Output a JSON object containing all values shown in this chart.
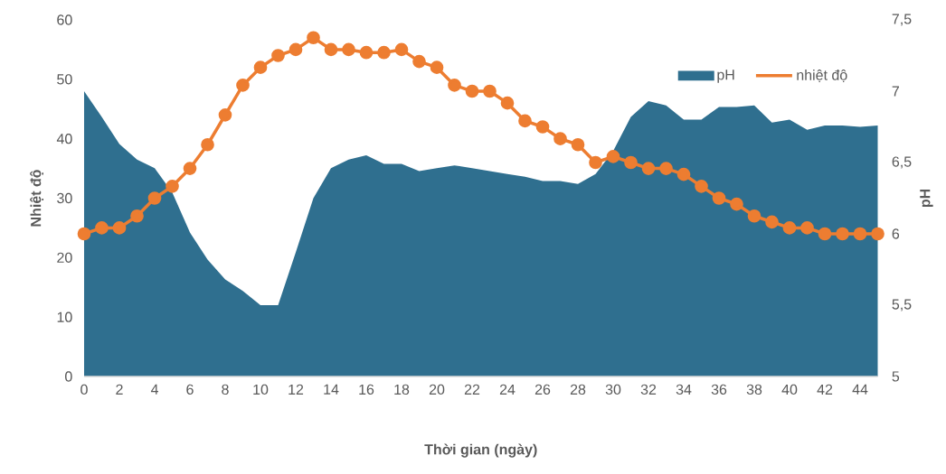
{
  "chart_data": {
    "type": "line",
    "xlabel": "Thời gian (ngày)",
    "ylabel": "Nhiệt độ",
    "y2label": "pH",
    "x": [
      0,
      1,
      2,
      3,
      4,
      5,
      6,
      7,
      8,
      9,
      10,
      11,
      12,
      13,
      14,
      15,
      16,
      17,
      18,
      19,
      20,
      21,
      22,
      23,
      24,
      25,
      26,
      27,
      28,
      29,
      30,
      31,
      32,
      33,
      34,
      35,
      36,
      37,
      38,
      39,
      40,
      41,
      42,
      43,
      44,
      45
    ],
    "xlim": [
      0,
      45
    ],
    "xticks": [
      0,
      2,
      4,
      6,
      8,
      10,
      12,
      14,
      16,
      18,
      20,
      22,
      24,
      26,
      28,
      30,
      32,
      34,
      36,
      38,
      40,
      42,
      44
    ],
    "ylim": [
      0,
      60
    ],
    "yticks": [
      0,
      10,
      20,
      30,
      40,
      50,
      60
    ],
    "y2lim": [
      5,
      7.5
    ],
    "y2ticks": [
      5,
      {
        "value": 5.5,
        "label": "5,5"
      },
      6,
      {
        "value": 6.5,
        "label": "6,5"
      },
      7,
      {
        "value": 7.5,
        "label": "7,5"
      }
    ],
    "legend": "top right",
    "series": [
      {
        "name": "pH",
        "type": "area",
        "axis": "y2",
        "color": "#2f6f8f",
        "values": [
          7.0,
          6.82,
          6.63,
          6.52,
          6.46,
          6.29,
          6.01,
          5.82,
          5.68,
          5.6,
          5.5,
          5.5,
          5.87,
          6.25,
          6.46,
          6.52,
          6.55,
          6.49,
          6.49,
          6.44,
          6.46,
          6.48,
          6.46,
          6.44,
          6.42,
          6.4,
          6.37,
          6.37,
          6.35,
          6.42,
          6.58,
          6.82,
          6.93,
          6.9,
          6.8,
          6.8,
          6.89,
          6.89,
          6.9,
          6.78,
          6.8,
          6.73,
          6.76,
          6.76,
          6.75,
          6.76
        ]
      },
      {
        "name": "nhiệt độ",
        "color": "#ed7d31",
        "marker": "circle",
        "values": [
          24,
          25,
          25,
          27,
          30,
          32,
          35,
          39,
          44,
          49,
          52,
          54,
          55,
          57,
          55,
          55,
          54.5,
          54.5,
          55,
          53,
          52,
          49,
          48,
          48,
          46,
          43,
          42,
          40,
          39,
          36,
          37,
          36,
          35,
          35,
          34,
          32,
          30,
          29,
          27,
          26,
          25,
          25,
          24,
          24,
          24,
          24
        ]
      }
    ]
  }
}
